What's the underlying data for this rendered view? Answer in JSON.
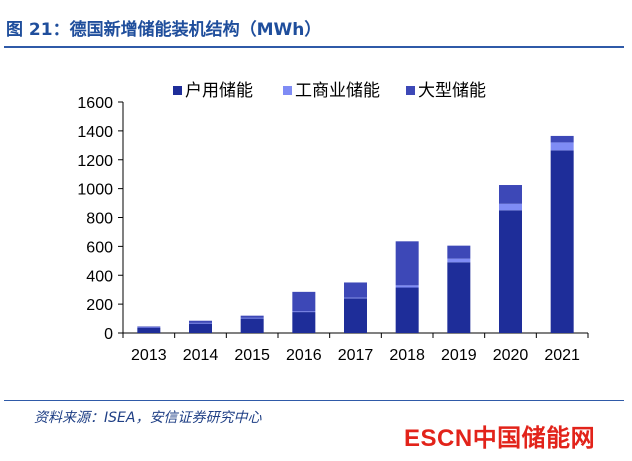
{
  "figure": {
    "title": "图 21：德国新增储能装机结构（MWh）",
    "source": "资料来源：ISEA，安信证券研究中心",
    "watermark_brand": "ESCN",
    "watermark_name": "中国储能网"
  },
  "chart_data": {
    "type": "bar",
    "stacked": true,
    "categories": [
      "2013",
      "2014",
      "2015",
      "2016",
      "2017",
      "2018",
      "2019",
      "2020",
      "2021"
    ],
    "series": [
      {
        "name": "户用储能",
        "color": "#1e2d99",
        "values": [
          35,
          65,
          100,
          145,
          240,
          315,
          490,
          850,
          1265
        ]
      },
      {
        "name": "工商业储能",
        "color": "#7f8cf5",
        "values": [
          3,
          5,
          5,
          5,
          5,
          15,
          25,
          45,
          55
        ]
      },
      {
        "name": "大型储能",
        "color": "#3d48b7",
        "values": [
          7,
          15,
          15,
          135,
          105,
          305,
          90,
          130,
          45
        ]
      }
    ],
    "yticks": [
      0,
      200,
      400,
      600,
      800,
      1000,
      1200,
      1400,
      1600
    ],
    "ylim": [
      0,
      1600
    ],
    "xlabel": "",
    "ylabel": "",
    "legend_position": "top",
    "grid": false
  }
}
